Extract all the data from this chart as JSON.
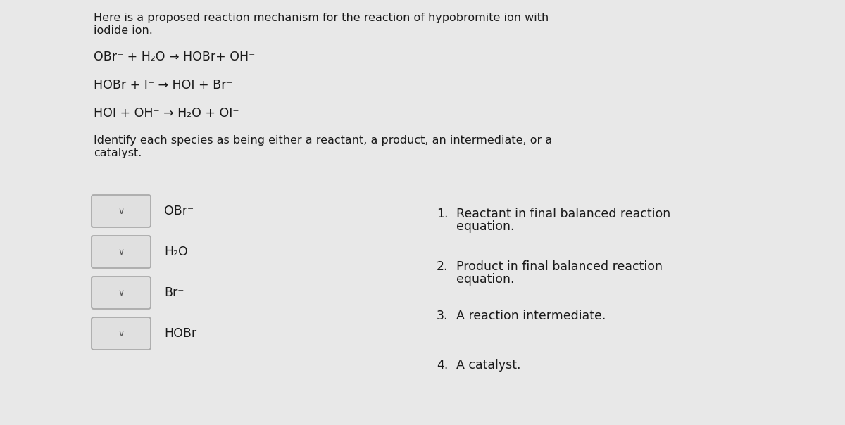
{
  "bg_color": "#e8e8e8",
  "title_text_line1": "Here is a proposed reaction mechanism for the reaction of hypobromite ion with",
  "title_text_line2": "iodide ion.",
  "equations": [
    "OBr⁻ + H₂O → HOBr+ OH⁻",
    "HOBr + I⁻ → HOI + Br⁻",
    "HOI + OH⁻ → H₂O + OI⁻"
  ],
  "identify_text_line1": "Identify each species as being either a reactant, a product, an intermediate, or a",
  "identify_text_line2": "catalyst.",
  "left_items": [
    "OBr⁻",
    "H₂O",
    "Br⁻",
    "HOBr"
  ],
  "right_entries": [
    {
      "num": "1.",
      "line1": "Reactant in final balanced reaction",
      "line2": "equation."
    },
    {
      "num": "2.",
      "line1": "Product in final balanced reaction",
      "line2": "equation."
    },
    {
      "num": "3.",
      "line1": "A reaction intermediate.",
      "line2": ""
    },
    {
      "num": "4.",
      "line1": "A catalyst.",
      "line2": ""
    }
  ],
  "font_size_title": 11.5,
  "font_size_eq": 12.5,
  "font_size_identify": 11.5,
  "font_size_items": 12.5,
  "font_size_right": 12.5,
  "text_color": "#1a1a1a",
  "box_edge_color": "#aaaaaa",
  "box_face_color": "#e0e0e0",
  "arrow_color": "#555555"
}
